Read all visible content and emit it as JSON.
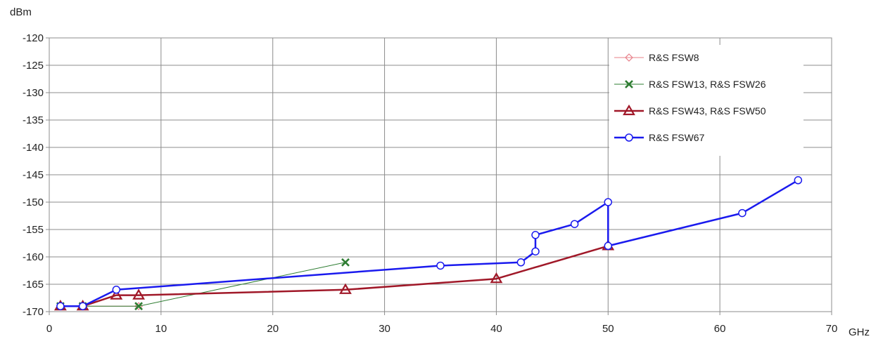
{
  "chart_data": {
    "type": "line",
    "ylabel": "dBm",
    "xlabel": "GHz",
    "xlim": [
      0,
      70
    ],
    "ylim": [
      -170,
      -120
    ],
    "x_ticks": [
      0,
      10,
      20,
      30,
      40,
      50,
      60,
      70
    ],
    "y_ticks": [
      -120,
      -125,
      -130,
      -135,
      -140,
      -145,
      -150,
      -155,
      -160,
      -165,
      -170
    ],
    "grid": true,
    "legend_position": "top-right",
    "series": [
      {
        "name": "R&S FSW8",
        "color": "#e8808a",
        "marker": "diamond",
        "line_width": 1,
        "points": [
          [
            1,
            -169
          ],
          [
            3,
            -169
          ],
          [
            8,
            -169
          ]
        ]
      },
      {
        "name": "R&S FSW13, R&S FSW26",
        "color": "#2e7d32",
        "marker": "x",
        "line_width": 1,
        "points": [
          [
            1,
            -169
          ],
          [
            3,
            -169
          ],
          [
            8,
            -169
          ],
          [
            26.5,
            -161
          ]
        ]
      },
      {
        "name": "R&S FSW43, R&S FSW50",
        "color": "#a01828",
        "marker": "triangle",
        "line_width": 2.5,
        "points": [
          [
            1,
            -169
          ],
          [
            3,
            -169
          ],
          [
            6,
            -167
          ],
          [
            8,
            -167
          ],
          [
            26.5,
            -166
          ],
          [
            40,
            -164
          ],
          [
            50,
            -158
          ]
        ]
      },
      {
        "name": "R&S FSW67",
        "color": "#1a1aee",
        "marker": "circle",
        "line_width": 2.5,
        "points": [
          [
            1,
            -169
          ],
          [
            3,
            -169
          ],
          [
            6,
            -166
          ],
          [
            35,
            -161.6
          ],
          [
            42.2,
            -161
          ],
          [
            43.5,
            -159
          ],
          [
            43.5,
            -156
          ],
          [
            47,
            -154
          ],
          [
            50,
            -150
          ],
          [
            50,
            -158
          ],
          [
            62,
            -152
          ],
          [
            67,
            -146
          ]
        ]
      }
    ]
  }
}
